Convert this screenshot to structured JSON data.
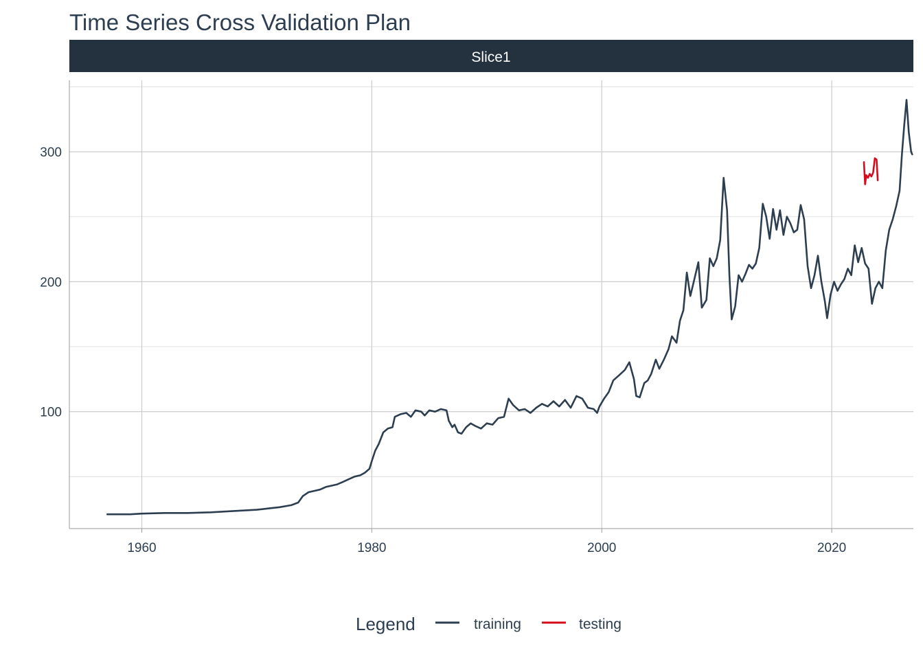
{
  "chart_data": {
    "type": "line",
    "title": "Time Series Cross Validation Plan",
    "facet_label": "Slice1",
    "xlabel": "",
    "ylabel": "",
    "xlim": [
      1953.7,
      2027.1
    ],
    "ylim": [
      10,
      355
    ],
    "x_ticks": [
      1960,
      1980,
      2000,
      2020
    ],
    "y_ticks": [
      100,
      200,
      300
    ],
    "y_minor_ticks": [
      50,
      150,
      250,
      350
    ],
    "grid": true,
    "legend": {
      "title": "Legend",
      "position": "bottom",
      "entries": [
        "training",
        "testing"
      ]
    },
    "colors": {
      "training": "#2c3e50",
      "testing": "#d50b1c",
      "strip": "#2c3e50"
    },
    "series": [
      {
        "name": "training",
        "color": "#2c3e50",
        "points": [
          [
            1957.0,
            21.0
          ],
          [
            1958.0,
            21.0
          ],
          [
            1959.0,
            21.0
          ],
          [
            1960.0,
            21.5
          ],
          [
            1962.0,
            22.0
          ],
          [
            1964.0,
            22.0
          ],
          [
            1966.0,
            22.5
          ],
          [
            1968.0,
            23.5
          ],
          [
            1970.0,
            24.5
          ],
          [
            1971.0,
            25.5
          ],
          [
            1972.0,
            26.5
          ],
          [
            1973.0,
            28.0
          ],
          [
            1973.6,
            30.0
          ],
          [
            1974.0,
            35.0
          ],
          [
            1974.5,
            38.0
          ],
          [
            1975.0,
            39.0
          ],
          [
            1975.5,
            40.0
          ],
          [
            1976.0,
            42.0
          ],
          [
            1977.0,
            44.0
          ],
          [
            1977.5,
            46.0
          ],
          [
            1978.0,
            48.0
          ],
          [
            1978.5,
            50.0
          ],
          [
            1979.0,
            51.0
          ],
          [
            1979.4,
            53.0
          ],
          [
            1979.8,
            56.0
          ],
          [
            1980.0,
            62.0
          ],
          [
            1980.3,
            70.0
          ],
          [
            1980.6,
            75.0
          ],
          [
            1981.0,
            84.0
          ],
          [
            1981.4,
            87.0
          ],
          [
            1981.8,
            88.0
          ],
          [
            1982.0,
            96.0
          ],
          [
            1982.5,
            98.0
          ],
          [
            1983.0,
            99.0
          ],
          [
            1983.4,
            96.0
          ],
          [
            1983.8,
            101.0
          ],
          [
            1984.3,
            100.0
          ],
          [
            1984.6,
            97.0
          ],
          [
            1985.0,
            101.0
          ],
          [
            1985.5,
            100.0
          ],
          [
            1986.0,
            102.0
          ],
          [
            1986.5,
            101.0
          ],
          [
            1986.7,
            93.0
          ],
          [
            1987.0,
            88.0
          ],
          [
            1987.2,
            90.0
          ],
          [
            1987.5,
            84.0
          ],
          [
            1987.8,
            83.0
          ],
          [
            1988.2,
            88.0
          ],
          [
            1988.6,
            91.0
          ],
          [
            1989.0,
            89.0
          ],
          [
            1989.5,
            87.0
          ],
          [
            1990.0,
            91.0
          ],
          [
            1990.5,
            90.0
          ],
          [
            1991.0,
            95.0
          ],
          [
            1991.5,
            96.0
          ],
          [
            1991.9,
            110.0
          ],
          [
            1992.3,
            105.0
          ],
          [
            1992.8,
            101.0
          ],
          [
            1993.3,
            102.0
          ],
          [
            1993.8,
            99.0
          ],
          [
            1994.3,
            103.0
          ],
          [
            1994.8,
            106.0
          ],
          [
            1995.3,
            104.0
          ],
          [
            1995.8,
            108.0
          ],
          [
            1996.3,
            104.0
          ],
          [
            1996.8,
            109.0
          ],
          [
            1997.3,
            103.0
          ],
          [
            1997.8,
            112.0
          ],
          [
            1998.3,
            110.0
          ],
          [
            1998.8,
            103.0
          ],
          [
            1999.3,
            102.0
          ],
          [
            1999.6,
            99.0
          ],
          [
            1999.8,
            104.0
          ],
          [
            2000.2,
            110.0
          ],
          [
            2000.6,
            115.0
          ],
          [
            2001.0,
            124.0
          ],
          [
            2001.5,
            128.0
          ],
          [
            2002.0,
            132.0
          ],
          [
            2002.4,
            138.0
          ],
          [
            2002.8,
            125.0
          ],
          [
            2003.0,
            112.0
          ],
          [
            2003.3,
            111.0
          ],
          [
            2003.7,
            122.0
          ],
          [
            2004.0,
            124.0
          ],
          [
            2004.3,
            129.0
          ],
          [
            2004.7,
            140.0
          ],
          [
            2005.0,
            133.0
          ],
          [
            2005.4,
            140.0
          ],
          [
            2005.8,
            148.0
          ],
          [
            2006.1,
            158.0
          ],
          [
            2006.5,
            153.0
          ],
          [
            2006.8,
            170.0
          ],
          [
            2007.1,
            178.0
          ],
          [
            2007.4,
            207.0
          ],
          [
            2007.7,
            189.0
          ],
          [
            2008.0,
            200.0
          ],
          [
            2008.4,
            215.0
          ],
          [
            2008.7,
            180.0
          ],
          [
            2009.1,
            186.0
          ],
          [
            2009.4,
            218.0
          ],
          [
            2009.7,
            212.0
          ],
          [
            2010.0,
            218.0
          ],
          [
            2010.3,
            232.0
          ],
          [
            2010.6,
            280.0
          ],
          [
            2010.9,
            255.0
          ],
          [
            2011.1,
            205.0
          ],
          [
            2011.3,
            171.0
          ],
          [
            2011.6,
            181.0
          ],
          [
            2011.9,
            205.0
          ],
          [
            2012.2,
            200.0
          ],
          [
            2012.5,
            206.0
          ],
          [
            2012.8,
            213.0
          ],
          [
            2013.1,
            210.0
          ],
          [
            2013.4,
            214.0
          ],
          [
            2013.7,
            226.0
          ],
          [
            2014.0,
            260.0
          ],
          [
            2014.3,
            250.0
          ],
          [
            2014.6,
            233.0
          ],
          [
            2014.9,
            256.0
          ],
          [
            2015.2,
            240.0
          ],
          [
            2015.5,
            255.0
          ],
          [
            2015.8,
            236.0
          ],
          [
            2016.1,
            250.0
          ],
          [
            2016.4,
            245.0
          ],
          [
            2016.7,
            238.0
          ],
          [
            2017.0,
            240.0
          ],
          [
            2017.3,
            259.0
          ],
          [
            2017.6,
            248.0
          ],
          [
            2017.9,
            212.0
          ],
          [
            2018.2,
            195.0
          ],
          [
            2018.5,
            205.0
          ],
          [
            2018.8,
            220.0
          ],
          [
            2019.1,
            200.0
          ],
          [
            2019.4,
            185.0
          ],
          [
            2019.6,
            172.0
          ],
          [
            2019.9,
            190.0
          ],
          [
            2020.2,
            200.0
          ],
          [
            2020.5,
            193.0
          ],
          [
            2020.8,
            198.0
          ],
          [
            2021.1,
            202.0
          ],
          [
            2021.4,
            210.0
          ],
          [
            2021.7,
            205.0
          ],
          [
            2022.0,
            228.0
          ],
          [
            2022.3,
            215.0
          ],
          [
            2022.6,
            226.0
          ],
          [
            2022.9,
            214.0
          ],
          [
            2023.2,
            210.0
          ],
          [
            2023.5,
            183.0
          ],
          [
            2023.8,
            195.0
          ],
          [
            2024.1,
            200.0
          ],
          [
            2024.4,
            195.0
          ],
          [
            2024.7,
            224.0
          ],
          [
            2025.0,
            240.0
          ],
          [
            2025.3,
            248.0
          ],
          [
            2025.6,
            258.0
          ],
          [
            2025.9,
            270.0
          ],
          [
            2026.1,
            298.0
          ],
          [
            2026.3,
            320.0
          ],
          [
            2026.5,
            340.0
          ],
          [
            2026.7,
            315.0
          ],
          [
            2026.9,
            300.0
          ],
          [
            2027.0,
            298.0
          ]
        ]
      },
      {
        "name": "testing",
        "color": "#d50b1c",
        "points": [
          [
            2022.8,
            292.0
          ],
          [
            2022.9,
            275.0
          ],
          [
            2023.0,
            282.0
          ],
          [
            2023.15,
            280.0
          ],
          [
            2023.3,
            283.0
          ],
          [
            2023.45,
            281.0
          ],
          [
            2023.6,
            284.0
          ],
          [
            2023.75,
            295.0
          ],
          [
            2023.9,
            294.0
          ],
          [
            2024.0,
            278.0
          ]
        ]
      }
    ]
  }
}
